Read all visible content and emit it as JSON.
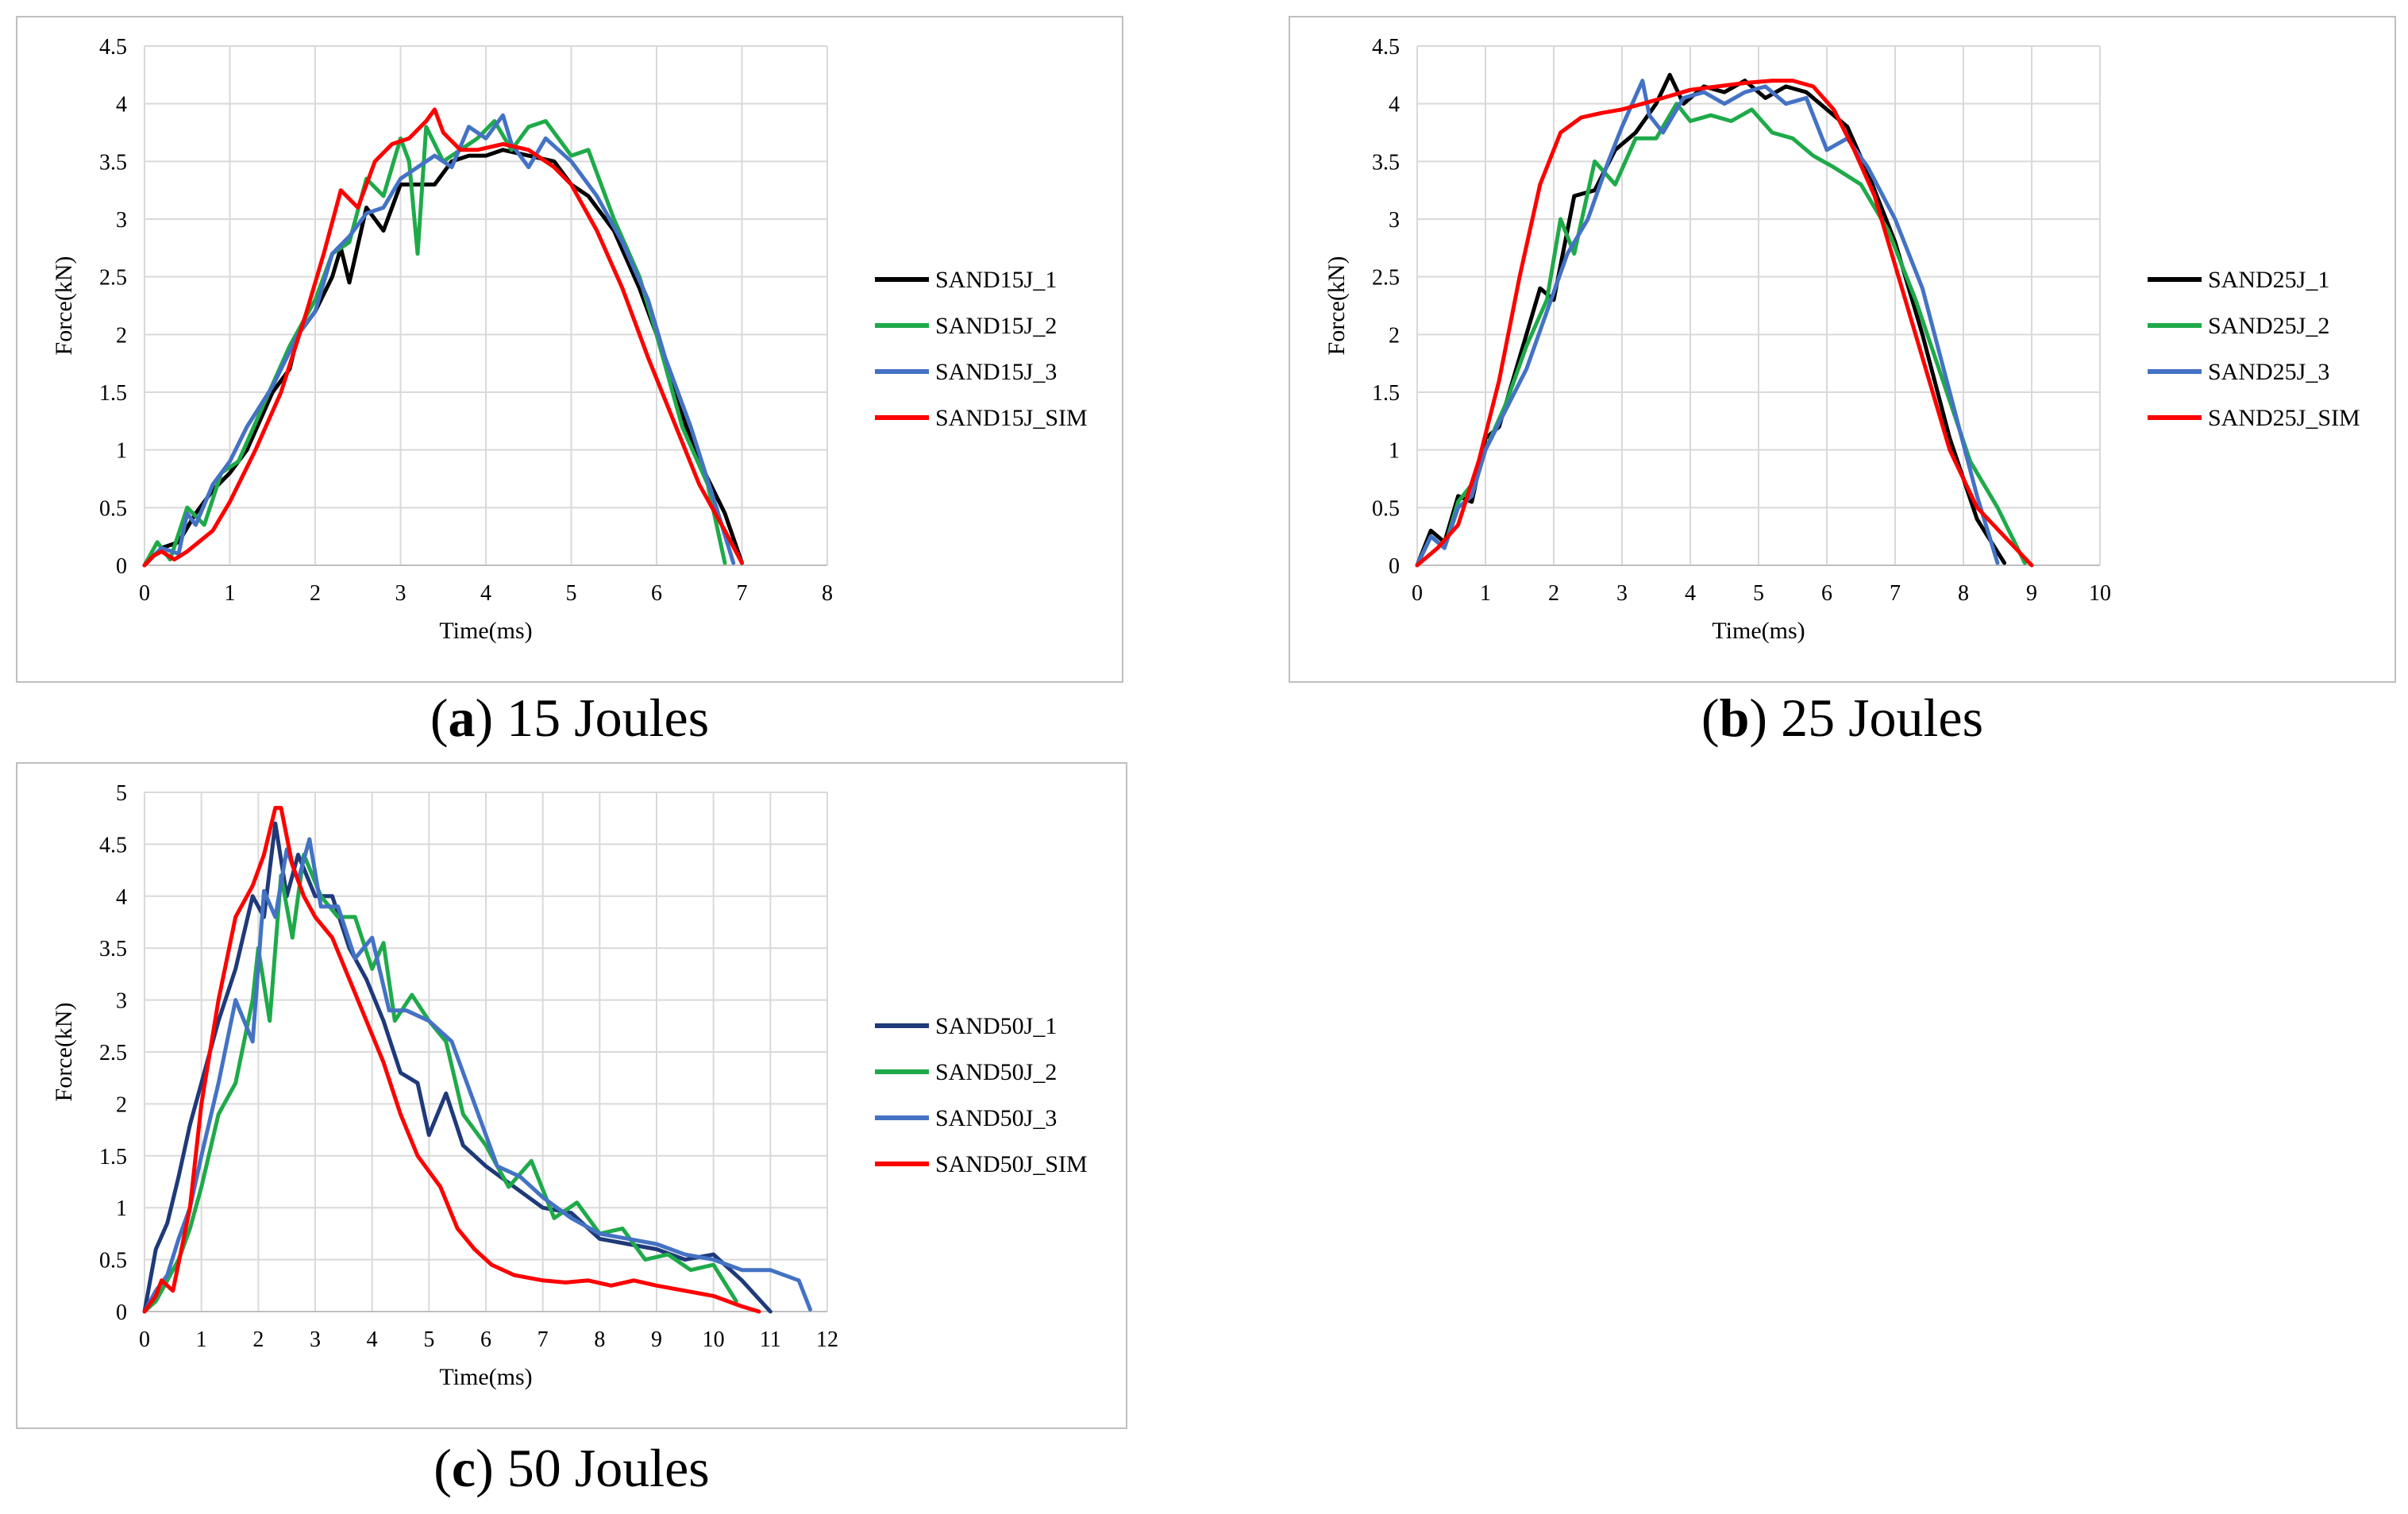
{
  "chart_data": [
    {
      "id": "a",
      "type": "line",
      "caption_letter": "a",
      "caption_text": " 15 Joules",
      "xlabel": "Time(ms)",
      "ylabel": "Force(kN)",
      "xlim": [
        0,
        8
      ],
      "ylim": [
        0,
        4.5
      ],
      "xticks": [
        "0",
        "1",
        "2",
        "3",
        "4",
        "5",
        "6",
        "7",
        "8"
      ],
      "yticks": [
        "0",
        "0.5",
        "1",
        "1.5",
        "2",
        "2.5",
        "3",
        "3.5",
        "4",
        "4.5"
      ],
      "grid": true,
      "legend_position": "right",
      "series": [
        {
          "name": "SAND15J_1",
          "color": "#000000",
          "x": [
            0,
            0.2,
            0.4,
            0.6,
            0.8,
            1,
            1.2,
            1.5,
            1.7,
            1.8,
            2,
            2.2,
            2.3,
            2.4,
            2.6,
            2.8,
            3,
            3.2,
            3.4,
            3.6,
            3.8,
            4,
            4.2,
            4.5,
            4.8,
            5,
            5.2,
            5.5,
            5.8,
            6,
            6.2,
            6.5,
            6.8,
            7
          ],
          "y": [
            0,
            0.15,
            0.2,
            0.45,
            0.65,
            0.8,
            1.0,
            1.5,
            1.7,
            2.0,
            2.2,
            2.5,
            2.75,
            2.45,
            3.1,
            2.9,
            3.3,
            3.3,
            3.3,
            3.5,
            3.55,
            3.55,
            3.6,
            3.55,
            3.5,
            3.3,
            3.2,
            2.9,
            2.4,
            2.0,
            1.5,
            0.9,
            0.45,
            0.02
          ]
        },
        {
          "name": "SAND15J_2",
          "color": "#1faa4a",
          "x": [
            0,
            0.15,
            0.3,
            0.5,
            0.7,
            0.9,
            1.1,
            1.4,
            1.7,
            2,
            2.2,
            2.4,
            2.6,
            2.8,
            3,
            3.1,
            3.2,
            3.3,
            3.5,
            3.7,
            3.9,
            4.1,
            4.3,
            4.5,
            4.7,
            5,
            5.2,
            5.5,
            5.8,
            6,
            6.3,
            6.6,
            6.8
          ],
          "y": [
            0,
            0.2,
            0.05,
            0.5,
            0.35,
            0.8,
            0.9,
            1.4,
            1.9,
            2.3,
            2.7,
            2.8,
            3.35,
            3.2,
            3.7,
            3.5,
            2.7,
            3.8,
            3.5,
            3.6,
            3.7,
            3.85,
            3.6,
            3.8,
            3.85,
            3.55,
            3.6,
            3.0,
            2.5,
            2.0,
            1.2,
            0.7,
            0.02
          ]
        },
        {
          "name": "SAND15J_3",
          "color": "#4472c4",
          "x": [
            0,
            0.2,
            0.4,
            0.5,
            0.6,
            0.8,
            1,
            1.2,
            1.5,
            1.8,
            2,
            2.2,
            2.4,
            2.6,
            2.8,
            3,
            3.2,
            3.4,
            3.6,
            3.8,
            4,
            4.2,
            4.3,
            4.5,
            4.7,
            5,
            5.3,
            5.6,
            5.9,
            6.1,
            6.4,
            6.7,
            6.9
          ],
          "y": [
            0,
            0.15,
            0.1,
            0.45,
            0.35,
            0.7,
            0.9,
            1.2,
            1.55,
            2.0,
            2.2,
            2.7,
            2.85,
            3.05,
            3.1,
            3.35,
            3.45,
            3.55,
            3.45,
            3.8,
            3.7,
            3.9,
            3.65,
            3.45,
            3.7,
            3.5,
            3.2,
            2.8,
            2.3,
            1.8,
            1.2,
            0.5,
            0.02
          ]
        },
        {
          "name": "SAND15J_SIM",
          "color": "#ff0000",
          "x": [
            0,
            0.1,
            0.2,
            0.35,
            0.5,
            0.8,
            1,
            1.3,
            1.6,
            1.9,
            2.1,
            2.3,
            2.5,
            2.7,
            2.9,
            3.1,
            3.3,
            3.4,
            3.5,
            3.7,
            3.9,
            4.2,
            4.5,
            4.8,
            5,
            5.3,
            5.6,
            5.9,
            6.2,
            6.5,
            6.8,
            7
          ],
          "y": [
            0,
            0.08,
            0.12,
            0.05,
            0.12,
            0.3,
            0.55,
            1.0,
            1.5,
            2.2,
            2.7,
            3.25,
            3.1,
            3.5,
            3.65,
            3.7,
            3.85,
            3.95,
            3.75,
            3.6,
            3.6,
            3.65,
            3.6,
            3.45,
            3.3,
            2.9,
            2.4,
            1.8,
            1.25,
            0.7,
            0.3,
            0.02
          ]
        }
      ]
    },
    {
      "id": "b",
      "type": "line",
      "caption_letter": "b",
      "caption_text": " 25 Joules",
      "xlabel": "Time(ms)",
      "ylabel": "Force(kN)",
      "xlim": [
        0,
        10
      ],
      "ylim": [
        0,
        4.5
      ],
      "xticks": [
        "0",
        "1",
        "2",
        "3",
        "4",
        "5",
        "6",
        "7",
        "8",
        "9",
        "10"
      ],
      "yticks": [
        "0",
        "0.5",
        "1",
        "1.5",
        "2",
        "2.5",
        "3",
        "3.5",
        "4",
        "4.5"
      ],
      "grid": true,
      "legend_position": "right",
      "series": [
        {
          "name": "SAND25J_1",
          "color": "#000000",
          "x": [
            0,
            0.2,
            0.4,
            0.6,
            0.8,
            1,
            1.2,
            1.5,
            1.8,
            2,
            2.3,
            2.6,
            2.9,
            3.2,
            3.5,
            3.7,
            3.9,
            4.2,
            4.5,
            4.8,
            5.1,
            5.4,
            5.7,
            6,
            6.3,
            6.6,
            7,
            7.4,
            7.8,
            8.2,
            8.6
          ],
          "y": [
            0,
            0.3,
            0.2,
            0.6,
            0.55,
            1.1,
            1.2,
            1.8,
            2.4,
            2.3,
            3.2,
            3.25,
            3.6,
            3.75,
            4.0,
            4.25,
            4.0,
            4.15,
            4.1,
            4.2,
            4.05,
            4.15,
            4.1,
            3.95,
            3.8,
            3.4,
            2.8,
            2.0,
            1.1,
            0.4,
            0.02
          ]
        },
        {
          "name": "SAND25J_2",
          "color": "#1faa4a",
          "x": [
            0,
            0.2,
            0.4,
            0.6,
            0.8,
            1,
            1.3,
            1.6,
            1.9,
            2.1,
            2.3,
            2.6,
            2.9,
            3.2,
            3.5,
            3.8,
            4,
            4.3,
            4.6,
            4.9,
            5.2,
            5.5,
            5.8,
            6.1,
            6.5,
            6.9,
            7.3,
            7.7,
            8.1,
            8.5,
            8.9
          ],
          "y": [
            0,
            0.25,
            0.15,
            0.55,
            0.7,
            1.0,
            1.4,
            1.9,
            2.3,
            3.0,
            2.7,
            3.5,
            3.3,
            3.7,
            3.7,
            4.0,
            3.85,
            3.9,
            3.85,
            3.95,
            3.75,
            3.7,
            3.55,
            3.45,
            3.3,
            2.9,
            2.3,
            1.6,
            0.9,
            0.5,
            0.02
          ]
        },
        {
          "name": "SAND25J_3",
          "color": "#4472c4",
          "x": [
            0,
            0.2,
            0.4,
            0.6,
            0.8,
            1,
            1.3,
            1.6,
            1.9,
            2.2,
            2.5,
            2.8,
            3.0,
            3.3,
            3.4,
            3.6,
            3.9,
            4.2,
            4.5,
            4.8,
            5.1,
            5.4,
            5.7,
            6,
            6.3,
            6.6,
            7,
            7.4,
            7.8,
            8.2,
            8.5
          ],
          "y": [
            0,
            0.25,
            0.15,
            0.5,
            0.6,
            1.0,
            1.35,
            1.7,
            2.2,
            2.7,
            3.0,
            3.5,
            3.8,
            4.2,
            3.9,
            3.75,
            4.05,
            4.1,
            4.0,
            4.1,
            4.15,
            4.0,
            4.05,
            3.6,
            3.7,
            3.45,
            3.0,
            2.4,
            1.5,
            0.6,
            0.02
          ]
        },
        {
          "name": "SAND25J_SIM",
          "color": "#ff0000",
          "x": [
            0,
            0.3,
            0.6,
            0.9,
            1.2,
            1.5,
            1.8,
            2.1,
            2.4,
            2.7,
            3,
            3.3,
            3.6,
            4,
            4.4,
            4.8,
            5.2,
            5.5,
            5.8,
            6.1,
            6.4,
            6.7,
            7,
            7.4,
            7.8,
            8.2,
            8.6,
            9
          ],
          "y": [
            0,
            0.15,
            0.35,
            0.9,
            1.6,
            2.5,
            3.3,
            3.75,
            3.88,
            3.92,
            3.95,
            4.0,
            4.05,
            4.12,
            4.15,
            4.18,
            4.2,
            4.2,
            4.15,
            3.95,
            3.6,
            3.2,
            2.6,
            1.8,
            1.0,
            0.5,
            0.25,
            0.0
          ]
        }
      ]
    },
    {
      "id": "c",
      "type": "line",
      "caption_letter": "c",
      "caption_text": " 50 Joules",
      "xlabel": "Time(ms)",
      "ylabel": "Force(kN)",
      "xlim": [
        0,
        12
      ],
      "ylim": [
        0,
        5
      ],
      "xticks": [
        "0",
        "1",
        "2",
        "3",
        "4",
        "5",
        "6",
        "7",
        "8",
        "9",
        "10",
        "11",
        "12"
      ],
      "yticks": [
        "0",
        "0.5",
        "1",
        "1.5",
        "2",
        "2.5",
        "3",
        "3.5",
        "4",
        "4.5",
        "5"
      ],
      "grid": true,
      "legend_position": "right",
      "series": [
        {
          "name": "SAND50J_1",
          "color": "#1f3a7a",
          "x": [
            0,
            0.2,
            0.4,
            0.6,
            0.8,
            1,
            1.3,
            1.6,
            1.9,
            2.1,
            2.3,
            2.5,
            2.7,
            3,
            3.3,
            3.6,
            3.9,
            4.2,
            4.5,
            4.8,
            5,
            5.3,
            5.6,
            6,
            6.5,
            7,
            7.5,
            8,
            8.5,
            9,
            9.5,
            10,
            10.5,
            11
          ],
          "y": [
            0,
            0.6,
            0.85,
            1.3,
            1.8,
            2.2,
            2.8,
            3.3,
            4.0,
            3.8,
            4.7,
            4.0,
            4.4,
            4.0,
            4.0,
            3.5,
            3.2,
            2.8,
            2.3,
            2.2,
            1.7,
            2.1,
            1.6,
            1.4,
            1.2,
            1.0,
            0.95,
            0.7,
            0.65,
            0.6,
            0.5,
            0.55,
            0.3,
            0.0
          ]
        },
        {
          "name": "SAND50J_2",
          "color": "#1faa4a",
          "x": [
            0,
            0.2,
            0.4,
            0.6,
            0.8,
            1,
            1.3,
            1.6,
            1.9,
            2,
            2.2,
            2.4,
            2.6,
            2.8,
            3.1,
            3.4,
            3.7,
            4,
            4.2,
            4.4,
            4.7,
            5,
            5.3,
            5.6,
            6,
            6.4,
            6.8,
            7.2,
            7.6,
            8,
            8.4,
            8.8,
            9.2,
            9.6,
            10,
            10.4
          ],
          "y": [
            0,
            0.1,
            0.3,
            0.5,
            0.8,
            1.2,
            1.9,
            2.2,
            3.0,
            3.5,
            2.8,
            4.2,
            3.6,
            4.4,
            4.0,
            3.8,
            3.8,
            3.3,
            3.55,
            2.8,
            3.05,
            2.8,
            2.6,
            1.9,
            1.6,
            1.2,
            1.45,
            0.9,
            1.05,
            0.75,
            0.8,
            0.5,
            0.55,
            0.4,
            0.45,
            0.1
          ]
        },
        {
          "name": "SAND50J_3",
          "color": "#4472c4",
          "x": [
            0,
            0.2,
            0.4,
            0.6,
            0.8,
            1,
            1.3,
            1.6,
            1.9,
            2.1,
            2.3,
            2.5,
            2.7,
            2.9,
            3.1,
            3.4,
            3.7,
            4,
            4.3,
            4.6,
            5,
            5.4,
            5.8,
            6.2,
            6.6,
            7,
            7.5,
            8,
            8.5,
            9,
            9.5,
            10,
            10.5,
            11,
            11.5,
            11.7
          ],
          "y": [
            0,
            0.2,
            0.35,
            0.7,
            1.0,
            1.5,
            2.2,
            3.0,
            2.6,
            4.05,
            3.8,
            4.45,
            4.15,
            4.55,
            3.9,
            3.9,
            3.4,
            3.6,
            2.9,
            2.9,
            2.8,
            2.6,
            2.0,
            1.4,
            1.3,
            1.1,
            0.9,
            0.75,
            0.7,
            0.65,
            0.55,
            0.5,
            0.4,
            0.4,
            0.3,
            0.02
          ]
        },
        {
          "name": "SAND50J_SIM",
          "color": "#ff0000",
          "x": [
            0,
            0.2,
            0.3,
            0.5,
            0.8,
            1,
            1.3,
            1.6,
            1.9,
            2.1,
            2.3,
            2.4,
            2.6,
            2.8,
            3,
            3.3,
            3.6,
            3.9,
            4.2,
            4.5,
            4.8,
            5.2,
            5.5,
            5.8,
            6.1,
            6.5,
            7,
            7.4,
            7.8,
            8.2,
            8.6,
            9,
            9.5,
            10,
            10.5,
            10.8
          ],
          "y": [
            0,
            0.15,
            0.3,
            0.2,
            1.0,
            2.0,
            3.0,
            3.8,
            4.1,
            4.4,
            4.85,
            4.85,
            4.3,
            4.0,
            3.8,
            3.6,
            3.2,
            2.8,
            2.4,
            1.9,
            1.5,
            1.2,
            0.8,
            0.6,
            0.45,
            0.35,
            0.3,
            0.28,
            0.3,
            0.25,
            0.3,
            0.25,
            0.2,
            0.15,
            0.05,
            0.0
          ]
        }
      ]
    }
  ]
}
